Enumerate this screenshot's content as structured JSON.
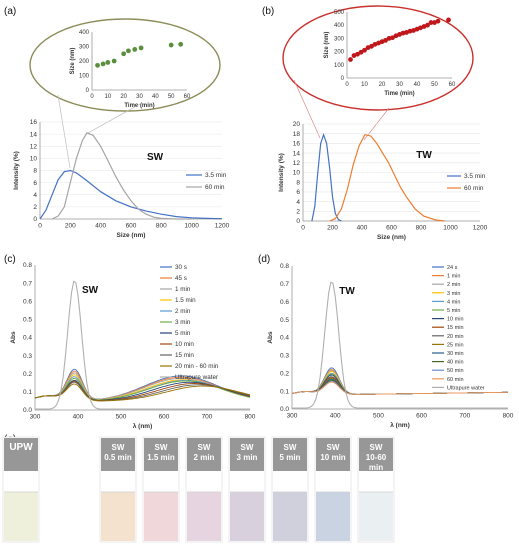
{
  "panel_labels": [
    "(a)",
    "(b)",
    "(c)",
    "(d)",
    "(e)"
  ],
  "chart_data": [
    {
      "id": "a_inset",
      "type": "scatter",
      "xlabel": "Time (min)",
      "ylabel": "Size (nm)",
      "xlim": [
        0,
        60
      ],
      "ylim": [
        0,
        400
      ],
      "xticks": [
        0,
        10,
        20,
        30,
        40,
        50,
        60
      ],
      "yticks": [
        0,
        100,
        200,
        300,
        400
      ],
      "x": [
        3.5,
        7,
        10,
        14,
        20,
        23,
        27,
        31,
        50,
        56
      ],
      "y": [
        170,
        180,
        190,
        200,
        250,
        270,
        280,
        290,
        310,
        315
      ],
      "color": "#5b8f3e"
    },
    {
      "id": "b_inset",
      "type": "scatter",
      "xlabel": "Time (min)",
      "ylabel": "Size (nm)",
      "xlim": [
        0,
        60
      ],
      "ylim": [
        0,
        500
      ],
      "xticks": [
        0,
        10,
        20,
        30,
        40,
        50,
        60
      ],
      "yticks": [
        0,
        100,
        200,
        300,
        400,
        500
      ],
      "x": [
        2,
        4,
        6,
        8,
        10,
        12,
        14,
        16,
        18,
        20,
        22,
        24,
        26,
        28,
        30,
        32,
        34,
        36,
        38,
        40,
        42,
        44,
        46,
        48,
        50,
        52,
        58
      ],
      "y": [
        140,
        170,
        180,
        195,
        210,
        230,
        240,
        255,
        265,
        275,
        285,
        300,
        305,
        320,
        330,
        340,
        345,
        355,
        360,
        370,
        380,
        390,
        400,
        420,
        420,
        430,
        440
      ],
      "color": "#c0171b"
    },
    {
      "id": "a_main",
      "type": "line",
      "title": "SW",
      "xlabel": "Size (nm)",
      "ylabel": "Intensity (%)",
      "xlim": [
        0,
        1200
      ],
      "ylim": [
        0,
        16
      ],
      "xticks": [
        0,
        200,
        400,
        600,
        800,
        1000,
        1200
      ],
      "yticks": [
        0,
        2,
        4,
        6,
        8,
        10,
        12,
        14,
        16
      ],
      "legend": "right",
      "series": [
        {
          "name": "3.5 min",
          "color": "#4472c4",
          "x": [
            0,
            40,
            80,
            120,
            160,
            200,
            240,
            300,
            400,
            500,
            600,
            700,
            800,
            900,
            1000,
            1100,
            1200
          ],
          "y": [
            0,
            1.5,
            4,
            6.5,
            7.8,
            8.0,
            7.6,
            6.5,
            4.5,
            3.0,
            2.0,
            1.3,
            0.8,
            0.4,
            0.2,
            0.1,
            0.05
          ]
        },
        {
          "name": "60 min",
          "color": "#a5a5a5",
          "x": [
            80,
            120,
            160,
            200,
            240,
            280,
            310,
            350,
            400,
            450,
            500,
            550,
            600,
            650,
            700,
            750,
            800,
            900,
            1000
          ],
          "y": [
            0,
            0.5,
            2,
            6,
            10,
            13,
            14.2,
            13.8,
            12,
            9.5,
            7,
            4.8,
            3,
            1.6,
            0.8,
            0.3,
            0.1,
            0,
            0
          ]
        }
      ]
    },
    {
      "id": "b_main",
      "type": "line",
      "title": "TW",
      "xlabel": "Size (nm)",
      "ylabel": "Intensity (%)",
      "xlim": [
        0,
        1200
      ],
      "ylim": [
        0,
        20
      ],
      "xticks": [
        0,
        200,
        400,
        600,
        800,
        1000,
        1200
      ],
      "yticks": [
        0,
        2,
        4,
        6,
        8,
        10,
        12,
        14,
        16,
        18,
        20
      ],
      "legend": "right",
      "series": [
        {
          "name": "3.5 min",
          "color": "#4472c4",
          "x": [
            60,
            80,
            100,
            120,
            140,
            160,
            180,
            200,
            220,
            240,
            260
          ],
          "y": [
            0,
            3,
            10,
            16,
            17.8,
            16,
            11,
            5,
            1.5,
            0.3,
            0
          ]
        },
        {
          "name": "60 min",
          "color": "#ed7d31",
          "x": [
            180,
            220,
            260,
            300,
            340,
            380,
            420,
            460,
            500,
            540,
            580,
            620,
            660,
            700,
            760,
            820,
            900,
            960
          ],
          "y": [
            0,
            0.5,
            2.5,
            6.5,
            11.5,
            15.5,
            17.8,
            17.5,
            16,
            14,
            12,
            9.5,
            7,
            5,
            2.5,
            1,
            0.2,
            0
          ]
        }
      ]
    },
    {
      "id": "c_uv",
      "type": "line",
      "title": "SW",
      "xlabel": "λ (nm)",
      "ylabel": "Abs",
      "xlim": [
        300,
        800
      ],
      "ylim": [
        0,
        0.8
      ],
      "xticks": [
        300,
        400,
        500,
        600,
        700,
        800
      ],
      "yticks": [
        0,
        0.1,
        0.2,
        0.3,
        0.4,
        0.5,
        0.6,
        0.7,
        0.8
      ],
      "legend": "inside-top-right",
      "series": [
        {
          "name": "30 s",
          "color": "#4472c4",
          "peak": 0.22,
          "base": 0.08,
          "b2": 0.2,
          "b2c": 640
        },
        {
          "name": "45 s",
          "color": "#ed7d31",
          "peak": 0.21,
          "base": 0.08,
          "b2": 0.19,
          "b2c": 640
        },
        {
          "name": "1 min",
          "color": "#a5a5a5",
          "peak": 0.2,
          "base": 0.08,
          "b2": 0.18,
          "b2c": 640
        },
        {
          "name": "1.5 min",
          "color": "#ffc000",
          "peak": 0.19,
          "base": 0.08,
          "b2": 0.17,
          "b2c": 645
        },
        {
          "name": "2 min",
          "color": "#5b9bd5",
          "peak": 0.18,
          "base": 0.08,
          "b2": 0.165,
          "b2c": 650
        },
        {
          "name": "3 min",
          "color": "#70ad47",
          "peak": 0.17,
          "base": 0.08,
          "b2": 0.16,
          "b2c": 650
        },
        {
          "name": "5 min",
          "color": "#264478",
          "peak": 0.16,
          "base": 0.08,
          "b2": 0.15,
          "b2c": 660
        },
        {
          "name": "10 min",
          "color": "#9e480e",
          "peak": 0.155,
          "base": 0.08,
          "b2": 0.14,
          "b2c": 670
        },
        {
          "name": "15 min",
          "color": "#636363",
          "peak": 0.15,
          "base": 0.08,
          "b2": 0.13,
          "b2c": 680
        },
        {
          "name": "20 min - 60 min",
          "color": "#997300",
          "peak": 0.14,
          "base": 0.08,
          "b2": 0.12,
          "b2c": 690
        },
        {
          "name": "Ultrapure water",
          "color": "#b0b0b0",
          "peak": 0.71,
          "base": 0.0,
          "b2": 0.0,
          "b2c": 650
        }
      ]
    },
    {
      "id": "d_uv",
      "type": "line",
      "title": "TW",
      "xlabel": "λ (nm)",
      "ylabel": "Abs",
      "xlim": [
        300,
        800
      ],
      "ylim": [
        0,
        0.8
      ],
      "xticks": [
        300,
        400,
        500,
        600,
        700,
        800
      ],
      "yticks": [
        0,
        0.1,
        0.2,
        0.3,
        0.4,
        0.5,
        0.6,
        0.7,
        0.8
      ],
      "legend": "inside-top-right",
      "series": [
        {
          "name": "24 s",
          "color": "#4472c4",
          "peak": 0.23
        },
        {
          "name": "1 min",
          "color": "#ed7d31",
          "peak": 0.22
        },
        {
          "name": "2 min",
          "color": "#a5a5a5",
          "peak": 0.215
        },
        {
          "name": "3 min",
          "color": "#ffc000",
          "peak": 0.21
        },
        {
          "name": "4 min",
          "color": "#5b9bd5",
          "peak": 0.2
        },
        {
          "name": "5 min",
          "color": "#70ad47",
          "peak": 0.195
        },
        {
          "name": "10 min",
          "color": "#264478",
          "peak": 0.19
        },
        {
          "name": "15 min",
          "color": "#9e480e",
          "peak": 0.18
        },
        {
          "name": "20 min",
          "color": "#636363",
          "peak": 0.175
        },
        {
          "name": "25 min",
          "color": "#997300",
          "peak": 0.17
        },
        {
          "name": "30 min",
          "color": "#255e91",
          "peak": 0.165
        },
        {
          "name": "40 min",
          "color": "#43682b",
          "peak": 0.16
        },
        {
          "name": "50 min",
          "color": "#698ed0",
          "peak": 0.155
        },
        {
          "name": "60 min",
          "color": "#f1975a",
          "peak": 0.15
        },
        {
          "name": "Ultrapure water",
          "color": "#b0b0b0",
          "peak": 0.71
        }
      ]
    }
  ],
  "vials": [
    {
      "label": "UPW",
      "color": "#eef0dc"
    },
    {
      "label": "SW\n0.5 min",
      "color": "#f4e2cf"
    },
    {
      "label": "SW\n1.5 min",
      "color": "#f0d8da"
    },
    {
      "label": "SW\n2 min",
      "color": "#e6d5e0"
    },
    {
      "label": "SW\n3 min",
      "color": "#d8d0dc"
    },
    {
      "label": "SW\n5 min",
      "color": "#cfd0dc"
    },
    {
      "label": "SW\n10 min",
      "color": "#c9d3e2"
    },
    {
      "label": "SW\n10-60 min",
      "color": "#eaf0f2"
    }
  ]
}
